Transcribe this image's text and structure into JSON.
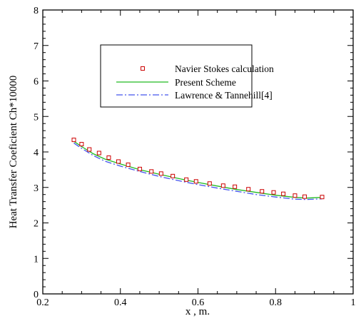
{
  "chart_data": {
    "type": "line",
    "title": "",
    "xlabel": "x , m.",
    "ylabel": "Heat Transfer Coeficient Ch*10000",
    "xlim": [
      0.2,
      1.0
    ],
    "ylim": [
      0,
      8
    ],
    "xticks": [
      0.2,
      0.4,
      0.6,
      0.8,
      1.0
    ],
    "xtick_labels": [
      "0.2",
      "0.4",
      "0.6",
      "0.8",
      "1"
    ],
    "yticks": [
      0,
      1,
      2,
      3,
      4,
      5,
      6,
      7,
      8
    ],
    "ytick_labels": [
      "0",
      "1",
      "2",
      "3",
      "4",
      "5",
      "6",
      "7",
      "8"
    ],
    "grid": false,
    "legend_position": "top-center",
    "series": [
      {
        "name": "Navier Stokes calculation",
        "style": "markers",
        "marker": "square",
        "color": "#cc0000",
        "x": [
          0.28,
          0.3,
          0.32,
          0.345,
          0.37,
          0.395,
          0.42,
          0.45,
          0.48,
          0.505,
          0.535,
          0.57,
          0.595,
          0.63,
          0.665,
          0.695,
          0.73,
          0.765,
          0.795,
          0.82,
          0.85,
          0.875,
          0.92
        ],
        "y": [
          4.34,
          4.22,
          4.07,
          3.97,
          3.84,
          3.73,
          3.64,
          3.52,
          3.45,
          3.39,
          3.32,
          3.22,
          3.17,
          3.11,
          3.05,
          3.02,
          2.95,
          2.89,
          2.86,
          2.82,
          2.77,
          2.74,
          2.73
        ]
      },
      {
        "name": "Present Scheme",
        "style": "solid",
        "color": "#22bb22",
        "x": [
          0.28,
          0.3,
          0.33,
          0.36,
          0.4,
          0.45,
          0.5,
          0.55,
          0.6,
          0.65,
          0.7,
          0.75,
          0.8,
          0.85,
          0.88,
          0.92
        ],
        "y": [
          4.3,
          4.15,
          3.95,
          3.8,
          3.66,
          3.5,
          3.37,
          3.25,
          3.14,
          3.04,
          2.94,
          2.86,
          2.78,
          2.72,
          2.7,
          2.72
        ]
      },
      {
        "name": "Lawrence & Tannehill[4]",
        "style": "dashdot",
        "color": "#4455ee",
        "x": [
          0.28,
          0.3,
          0.33,
          0.36,
          0.4,
          0.45,
          0.5,
          0.55,
          0.6,
          0.65,
          0.7,
          0.75,
          0.8,
          0.85,
          0.88,
          0.92
        ],
        "y": [
          4.25,
          4.1,
          3.9,
          3.74,
          3.6,
          3.45,
          3.31,
          3.19,
          3.08,
          2.98,
          2.89,
          2.8,
          2.73,
          2.67,
          2.66,
          2.68
        ]
      }
    ]
  }
}
